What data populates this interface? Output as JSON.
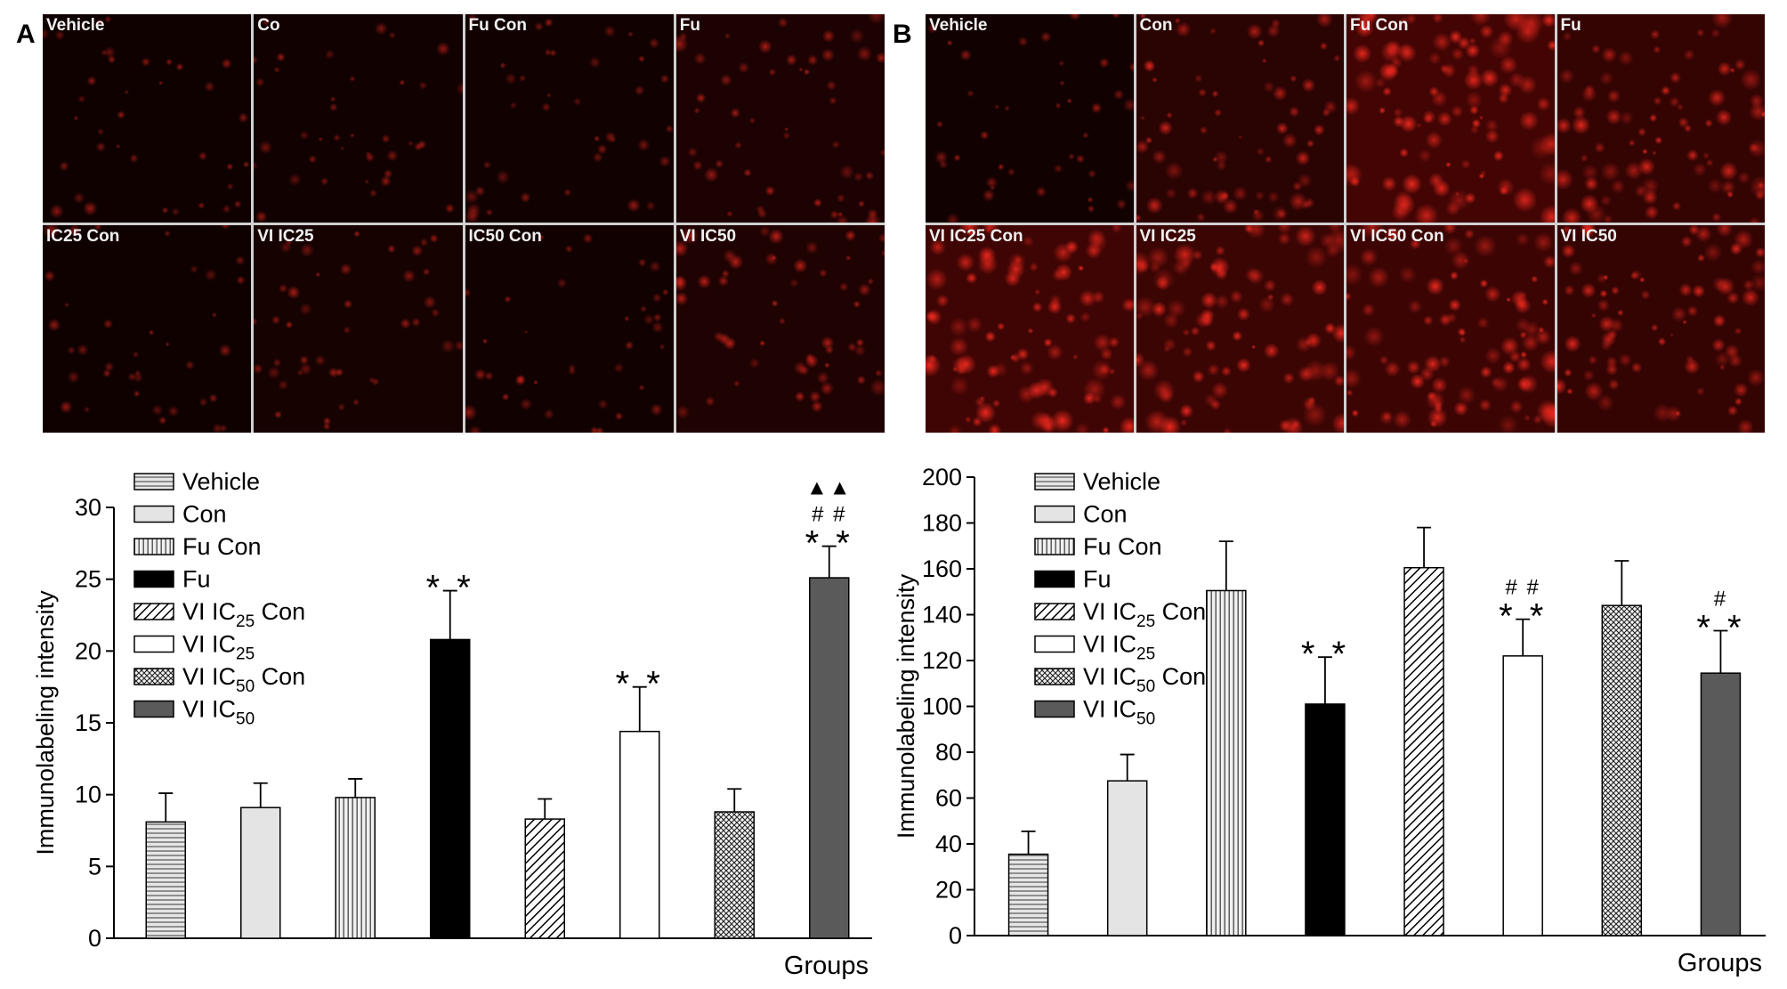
{
  "panels": [
    {
      "letter": "A",
      "images": [
        {
          "label": "Vehicle",
          "brightness": 0.08
        },
        {
          "label": "Co",
          "brightness": 0.1
        },
        {
          "label": "Fu Con",
          "brightness": 0.1
        },
        {
          "label": "Fu",
          "brightness": 0.25
        },
        {
          "label": "IC25 Con",
          "brightness": 0.09
        },
        {
          "label": "VI IC25",
          "brightness": 0.16
        },
        {
          "label": "IC50 Con",
          "brightness": 0.1
        },
        {
          "label": "VI IC50",
          "brightness": 0.3
        }
      ]
    },
    {
      "letter": "B",
      "images": [
        {
          "label": "Vehicle",
          "brightness": 0.12
        },
        {
          "label": "Con",
          "brightness": 0.45
        },
        {
          "label": "Fu Con",
          "brightness": 0.8
        },
        {
          "label": "Fu",
          "brightness": 0.6
        },
        {
          "label": "VI IC25 Con",
          "brightness": 0.75
        },
        {
          "label": "VI IC25",
          "brightness": 0.7
        },
        {
          "label": "VI IC50 Con",
          "brightness": 0.72
        },
        {
          "label": "VI IC50",
          "brightness": 0.6
        }
      ]
    }
  ],
  "legend": [
    {
      "name": "Vehicle",
      "sub": "",
      "suffix": "",
      "pattern": "hlines"
    },
    {
      "name": "Con",
      "sub": "",
      "suffix": "",
      "pattern": "light"
    },
    {
      "name": "Fu Con",
      "sub": "",
      "suffix": "",
      "pattern": "vlines"
    },
    {
      "name": "Fu",
      "sub": "",
      "suffix": "",
      "pattern": "black"
    },
    {
      "name": "VI IC",
      "sub": "25",
      "suffix": " Con",
      "pattern": "diag"
    },
    {
      "name": "VI IC",
      "sub": "25",
      "suffix": "",
      "pattern": "white"
    },
    {
      "name": "VI IC",
      "sub": "50",
      "suffix": " Con",
      "pattern": "cross"
    },
    {
      "name": "VI IC",
      "sub": "50",
      "suffix": "",
      "pattern": "darkgray"
    }
  ],
  "chart_data": [
    {
      "type": "bar",
      "ylabel": "Immunolabeling intensity",
      "xlabel": "Groups",
      "ylim": [
        0,
        30
      ],
      "yticks": [
        0,
        5,
        10,
        15,
        20,
        25,
        30
      ],
      "categories": [
        "Vehicle",
        "Con",
        "Fu Con",
        "Fu",
        "VI IC25 Con",
        "VI IC25",
        "VI IC50 Con",
        "VI IC50"
      ],
      "values": [
        8.1,
        9.1,
        9.8,
        20.8,
        8.3,
        14.4,
        8.8,
        25.1
      ],
      "errors": [
        2.0,
        1.7,
        1.3,
        3.4,
        1.4,
        3.1,
        1.6,
        2.2
      ],
      "annotations": [
        [],
        [],
        [],
        [
          "* *"
        ],
        [],
        [
          "* *"
        ],
        [],
        [
          "* *",
          "# #",
          "▲▲"
        ]
      ],
      "legend_position": "top-left"
    },
    {
      "type": "bar",
      "ylabel": "Immunolabeling intensity",
      "xlabel": "Groups",
      "ylim": [
        0,
        200
      ],
      "yticks": [
        0,
        20,
        40,
        60,
        80,
        100,
        120,
        140,
        160,
        180,
        200
      ],
      "categories": [
        "Vehicle",
        "Con",
        "Fu Con",
        "Fu",
        "VI IC25 Con",
        "VI IC25",
        "VI IC50 Con",
        "VI IC50"
      ],
      "values": [
        35.5,
        67.5,
        150.5,
        101.0,
        160.5,
        122.0,
        144.0,
        114.5
      ],
      "errors": [
        10,
        11.5,
        21.5,
        20.5,
        17.5,
        16,
        19.5,
        18.5
      ],
      "annotations": [
        [],
        [],
        [],
        [
          "* *"
        ],
        [],
        [
          "* *",
          "# #"
        ],
        [],
        [
          "* *",
          "#"
        ]
      ],
      "legend_position": "top-left"
    }
  ]
}
